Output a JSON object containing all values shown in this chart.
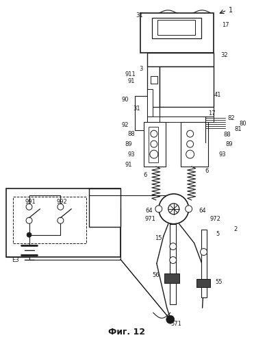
{
  "title": "Фиг. 12",
  "bg_color": "#ffffff",
  "line_color": "#1a1a1a",
  "fig_width": 3.71,
  "fig_height": 4.99,
  "dpi": 100
}
